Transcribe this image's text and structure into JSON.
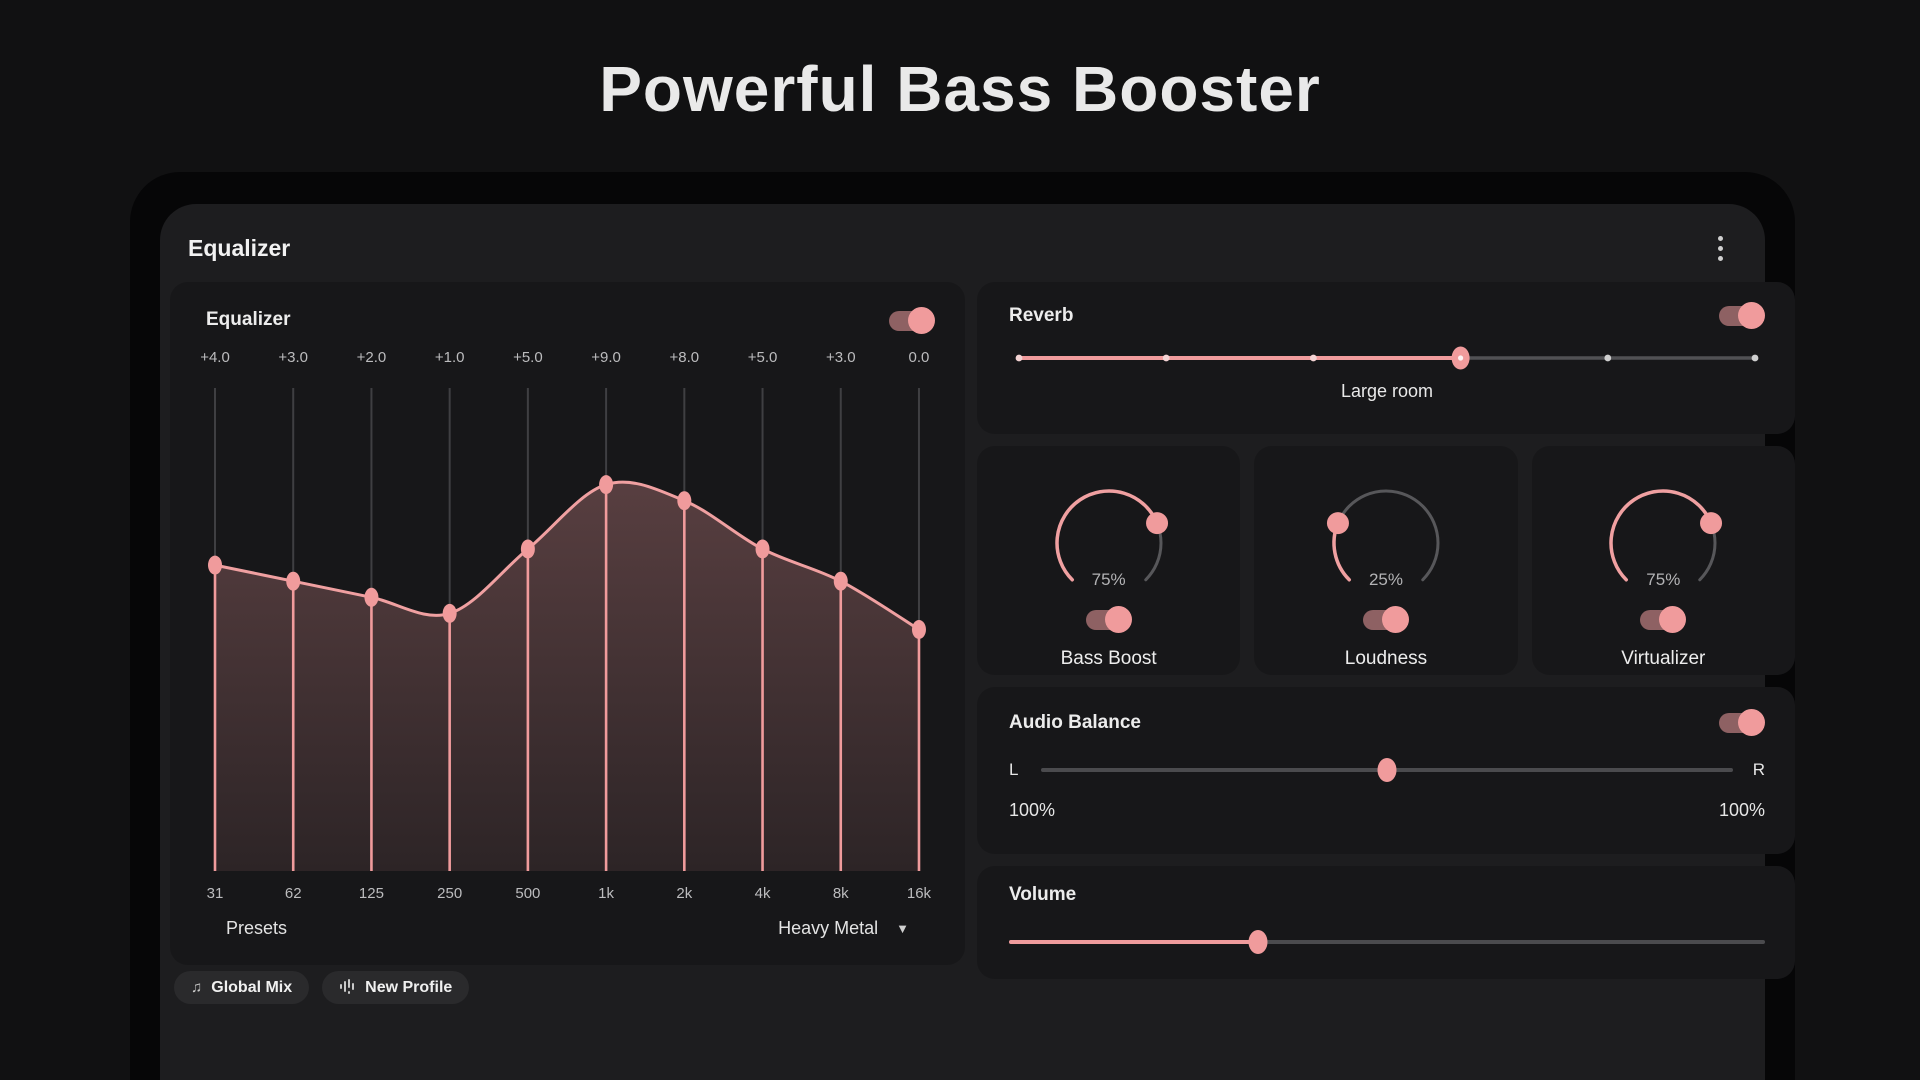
{
  "page": {
    "title": "Powerful Bass Booster"
  },
  "colors": {
    "accent_pink": "#f09b9c",
    "switch_track": "#8e6163",
    "gray_track": "#4b4b4e",
    "gauge_gray": "#57575a",
    "eq_line_gray": "#3f3f42",
    "card_bg": "#1d1d1f",
    "panel_bg": "#171719"
  },
  "header": {
    "title": "Equalizer",
    "menu_icon": "kebab-menu-icon"
  },
  "equalizer_panel": {
    "label": "Equalizer",
    "enabled": true,
    "presets_label": "Presets",
    "preset_selected": "Heavy Metal",
    "chart_data": {
      "type": "line",
      "title": "Equalizer bands",
      "x": [
        "31",
        "62",
        "125",
        "250",
        "500",
        "1k",
        "2k",
        "4k",
        "8k",
        "16k"
      ],
      "values": [
        4.0,
        3.0,
        2.0,
        1.0,
        5.0,
        9.0,
        8.0,
        5.0,
        3.0,
        0.0
      ],
      "value_labels": [
        "+4.0",
        "+3.0",
        "+2.0",
        "+1.0",
        "+5.0",
        "+9.0",
        "+8.0",
        "+5.0",
        "+3.0",
        "0.0"
      ],
      "ylim": [
        -15,
        15
      ],
      "grid": false,
      "style": "smooth area fill with vertical band sliders"
    }
  },
  "reverb": {
    "label": "Reverb",
    "enabled": true,
    "steps": 6,
    "selected_step_index": 3,
    "selected_label": "Large room"
  },
  "knobs": [
    {
      "label": "Bass Boost",
      "percent": 75,
      "percent_label": "75%",
      "enabled": true
    },
    {
      "label": "Loudness",
      "percent": 25,
      "percent_label": "25%",
      "enabled": true
    },
    {
      "label": "Virtualizer",
      "percent": 75,
      "percent_label": "75%",
      "enabled": true
    }
  ],
  "audio_balance": {
    "label": "Audio Balance",
    "enabled": true,
    "left_label": "L",
    "right_label": "R",
    "left_percent": "100%",
    "right_percent": "100%",
    "balance_percent": 50
  },
  "volume": {
    "label": "Volume",
    "percent": 33
  },
  "chips": [
    {
      "label": "Global Mix",
      "icon": "music-note-icon",
      "glyph": "♫"
    },
    {
      "label": "New Profile",
      "icon": "waveform-icon"
    }
  ]
}
